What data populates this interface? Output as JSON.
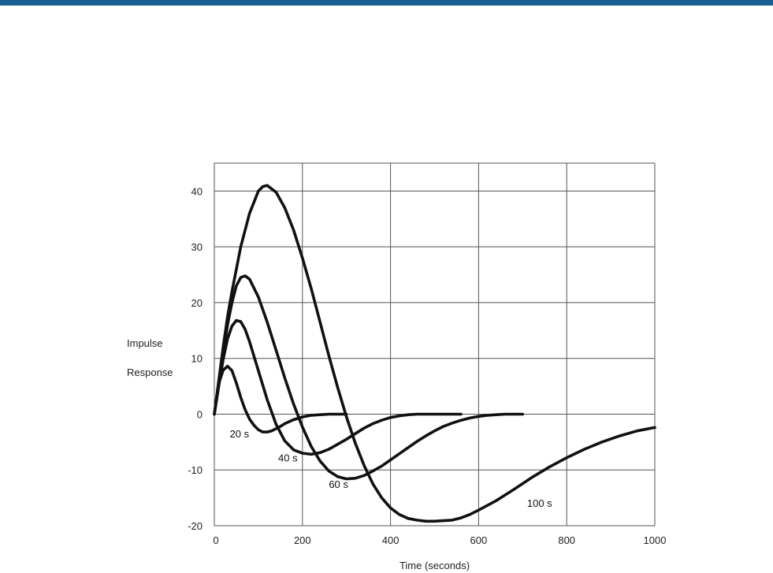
{
  "header_bar_color": "#1a5f94",
  "chart_data": {
    "type": "line",
    "title": "",
    "xlabel": "Time (seconds)",
    "ylabel_lines": [
      "Impulse",
      "Response"
    ],
    "xlim": [
      0,
      1000
    ],
    "ylim": [
      -20,
      45
    ],
    "xticks": [
      0,
      200,
      400,
      600,
      800,
      1000
    ],
    "yticks": [
      -20,
      -10,
      0,
      10,
      20,
      30,
      40
    ],
    "grid": true,
    "line_color": "#111111",
    "series": [
      {
        "name": "20 s",
        "x": [
          0,
          10,
          20,
          30,
          40,
          50,
          60,
          70,
          80,
          90,
          100,
          110,
          120,
          130,
          140,
          150,
          160,
          180,
          200,
          220,
          240,
          260,
          280,
          300
        ],
        "values": [
          0,
          5.5,
          7.9,
          8.6,
          7.8,
          5.6,
          3.0,
          0.8,
          -0.9,
          -2.0,
          -2.8,
          -3.2,
          -3.2,
          -3.0,
          -2.6,
          -2.2,
          -1.7,
          -1.0,
          -0.5,
          -0.2,
          -0.1,
          0,
          0,
          0
        ]
      },
      {
        "name": "40 s",
        "x": [
          0,
          10,
          20,
          30,
          40,
          50,
          60,
          70,
          80,
          90,
          100,
          110,
          120,
          140,
          160,
          180,
          200,
          220,
          240,
          260,
          280,
          300,
          320,
          340,
          360,
          380,
          400,
          420,
          440,
          460,
          480,
          500,
          520,
          540,
          560
        ],
        "values": [
          0,
          5,
          9.8,
          13.5,
          15.8,
          16.8,
          16.6,
          15.2,
          13,
          10.4,
          7.8,
          5.2,
          2.6,
          -1.8,
          -4.8,
          -6.4,
          -7.0,
          -7.2,
          -6.9,
          -6.3,
          -5.4,
          -4.5,
          -3.5,
          -2.5,
          -1.7,
          -1.1,
          -0.6,
          -0.3,
          -0.1,
          0,
          0,
          0,
          0,
          0,
          0
        ]
      },
      {
        "name": "60 s",
        "x": [
          0,
          10,
          20,
          30,
          40,
          50,
          60,
          70,
          80,
          100,
          120,
          140,
          160,
          180,
          200,
          220,
          240,
          260,
          280,
          300,
          320,
          340,
          360,
          380,
          400,
          420,
          440,
          460,
          480,
          500,
          520,
          540,
          560,
          580,
          600,
          620,
          640,
          660,
          680,
          700
        ],
        "values": [
          0,
          5.5,
          11,
          16,
          20,
          23,
          24.5,
          24.8,
          24.2,
          21,
          16.5,
          11.5,
          6.5,
          1.8,
          -2.3,
          -5.8,
          -8.4,
          -10.2,
          -11.2,
          -11.6,
          -11.5,
          -11,
          -10.2,
          -9.3,
          -8.2,
          -7.1,
          -6,
          -4.9,
          -3.9,
          -3,
          -2.2,
          -1.6,
          -1.1,
          -0.7,
          -0.4,
          -0.2,
          -0.1,
          0,
          0,
          0
        ]
      },
      {
        "name": "100 s",
        "x": [
          0,
          10,
          20,
          30,
          40,
          60,
          80,
          100,
          110,
          120,
          140,
          160,
          180,
          200,
          220,
          240,
          260,
          280,
          300,
          320,
          340,
          360,
          380,
          400,
          420,
          440,
          460,
          480,
          500,
          520,
          540,
          560,
          580,
          600,
          640,
          680,
          720,
          760,
          800,
          840,
          880,
          920,
          960,
          1000
        ],
        "values": [
          0,
          6,
          12,
          17.5,
          22,
          30,
          36,
          40,
          40.8,
          41,
          39.8,
          37,
          33,
          28,
          22.5,
          16.5,
          10.5,
          4.8,
          -0.5,
          -5.2,
          -9.2,
          -12.5,
          -15,
          -16.8,
          -18,
          -18.7,
          -19,
          -19.2,
          -19.2,
          -19.1,
          -19,
          -18.6,
          -18,
          -17.2,
          -15.5,
          -13.5,
          -11.4,
          -9.5,
          -7.8,
          -6.3,
          -5,
          -3.9,
          -3,
          -2.4
        ]
      }
    ],
    "annotations": [
      {
        "text": "20 s",
        "x": 35,
        "y": -4.2
      },
      {
        "text": "40 s",
        "x": 145,
        "y": -8.5
      },
      {
        "text": "60 s",
        "x": 260,
        "y": -13.2
      },
      {
        "text": "100 s",
        "x": 710,
        "y": -16.6
      }
    ]
  }
}
